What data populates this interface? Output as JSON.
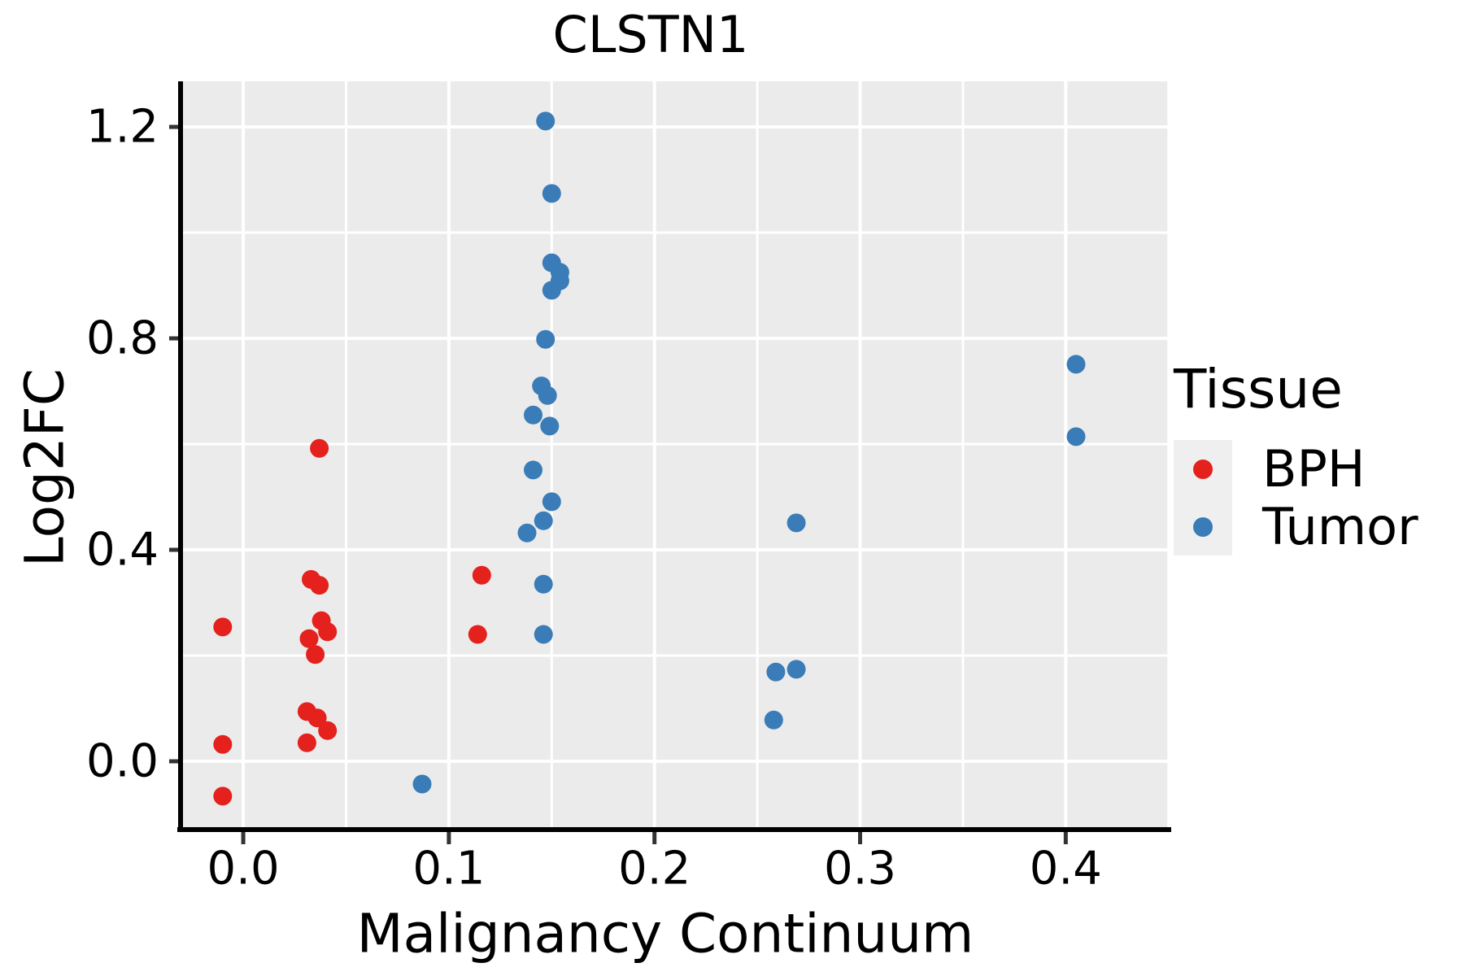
{
  "chart_data": {
    "type": "scatter",
    "title": "CLSTN1",
    "xlabel": "Malignancy Continuum",
    "ylabel": "Log2FC",
    "xlim": [
      -0.0293,
      0.4505
    ],
    "ylim": [
      -0.1292,
      1.2862
    ],
    "grid": true,
    "panel_bg": "#ebebeb",
    "grid_color": "#ffffff",
    "axis_line_color": "#000000",
    "tick_mark_color": "#333333",
    "x_ticks": [
      {
        "v": 0.0,
        "label": "0.0"
      },
      {
        "v": 0.1,
        "label": "0.1"
      },
      {
        "v": 0.2,
        "label": "0.2"
      },
      {
        "v": 0.3,
        "label": "0.3"
      },
      {
        "v": 0.4,
        "label": "0.4"
      }
    ],
    "y_ticks": [
      {
        "v": 0.0,
        "label": "0.0"
      },
      {
        "v": 0.4,
        "label": "0.4"
      },
      {
        "v": 0.8,
        "label": "0.8"
      },
      {
        "v": 1.2,
        "label": "1.2"
      }
    ],
    "x_grid_minor": [
      0.05,
      0.15,
      0.25,
      0.35,
      0.45
    ],
    "y_grid_minor": [
      0.2,
      0.6,
      1.0
    ],
    "legend": {
      "title": "Tissue",
      "position": "right"
    },
    "series": [
      {
        "name": "BPH",
        "color": "#e4211c",
        "points": [
          [
            -0.01,
            0.254
          ],
          [
            -0.01,
            0.032
          ],
          [
            -0.01,
            -0.066
          ],
          [
            0.037,
            0.592
          ],
          [
            0.033,
            0.344
          ],
          [
            0.037,
            0.333
          ],
          [
            0.038,
            0.266
          ],
          [
            0.041,
            0.245
          ],
          [
            0.032,
            0.232
          ],
          [
            0.035,
            0.202
          ],
          [
            0.031,
            0.094
          ],
          [
            0.036,
            0.082
          ],
          [
            0.041,
            0.058
          ],
          [
            0.031,
            0.035
          ],
          [
            0.116,
            0.352
          ],
          [
            0.114,
            0.24
          ]
        ]
      },
      {
        "name": "Tumor",
        "color": "#3a7cb8",
        "points": [
          [
            0.147,
            1.211
          ],
          [
            0.15,
            1.074
          ],
          [
            0.15,
            0.943
          ],
          [
            0.154,
            0.925
          ],
          [
            0.154,
            0.909
          ],
          [
            0.15,
            0.891
          ],
          [
            0.147,
            0.798
          ],
          [
            0.145,
            0.71
          ],
          [
            0.148,
            0.692
          ],
          [
            0.141,
            0.655
          ],
          [
            0.149,
            0.634
          ],
          [
            0.141,
            0.551
          ],
          [
            0.15,
            0.491
          ],
          [
            0.146,
            0.455
          ],
          [
            0.138,
            0.432
          ],
          [
            0.146,
            0.335
          ],
          [
            0.146,
            0.24
          ],
          [
            0.087,
            -0.043
          ],
          [
            0.269,
            0.451
          ],
          [
            0.259,
            0.169
          ],
          [
            0.269,
            0.174
          ],
          [
            0.258,
            0.078
          ],
          [
            0.405,
            0.751
          ],
          [
            0.405,
            0.614
          ]
        ]
      }
    ],
    "point_radius_px": 11.5
  }
}
